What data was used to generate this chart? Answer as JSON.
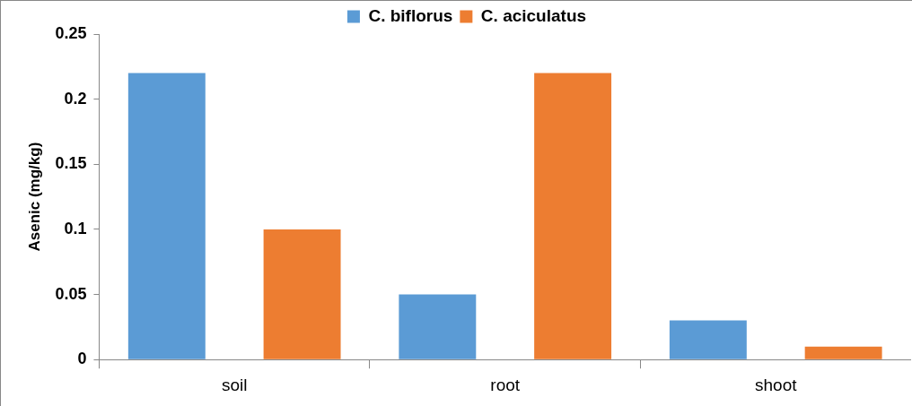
{
  "chart_data": {
    "type": "bar",
    "ylabel": "Asenic (mg/kg)",
    "categories": [
      "soil",
      "root",
      "shoot"
    ],
    "series": [
      {
        "name": "C. biflorus",
        "color": "#5b9bd5",
        "values": [
          0.22,
          0.05,
          0.03
        ]
      },
      {
        "name": "C. aciculatus",
        "color": "#ed7d31",
        "values": [
          0.1,
          0.22,
          0.01
        ]
      }
    ],
    "ylim": [
      0,
      0.25
    ],
    "yticks": [
      0,
      0.05,
      0.1,
      0.15,
      0.2,
      0.25
    ],
    "grid": false,
    "legend": "top"
  }
}
